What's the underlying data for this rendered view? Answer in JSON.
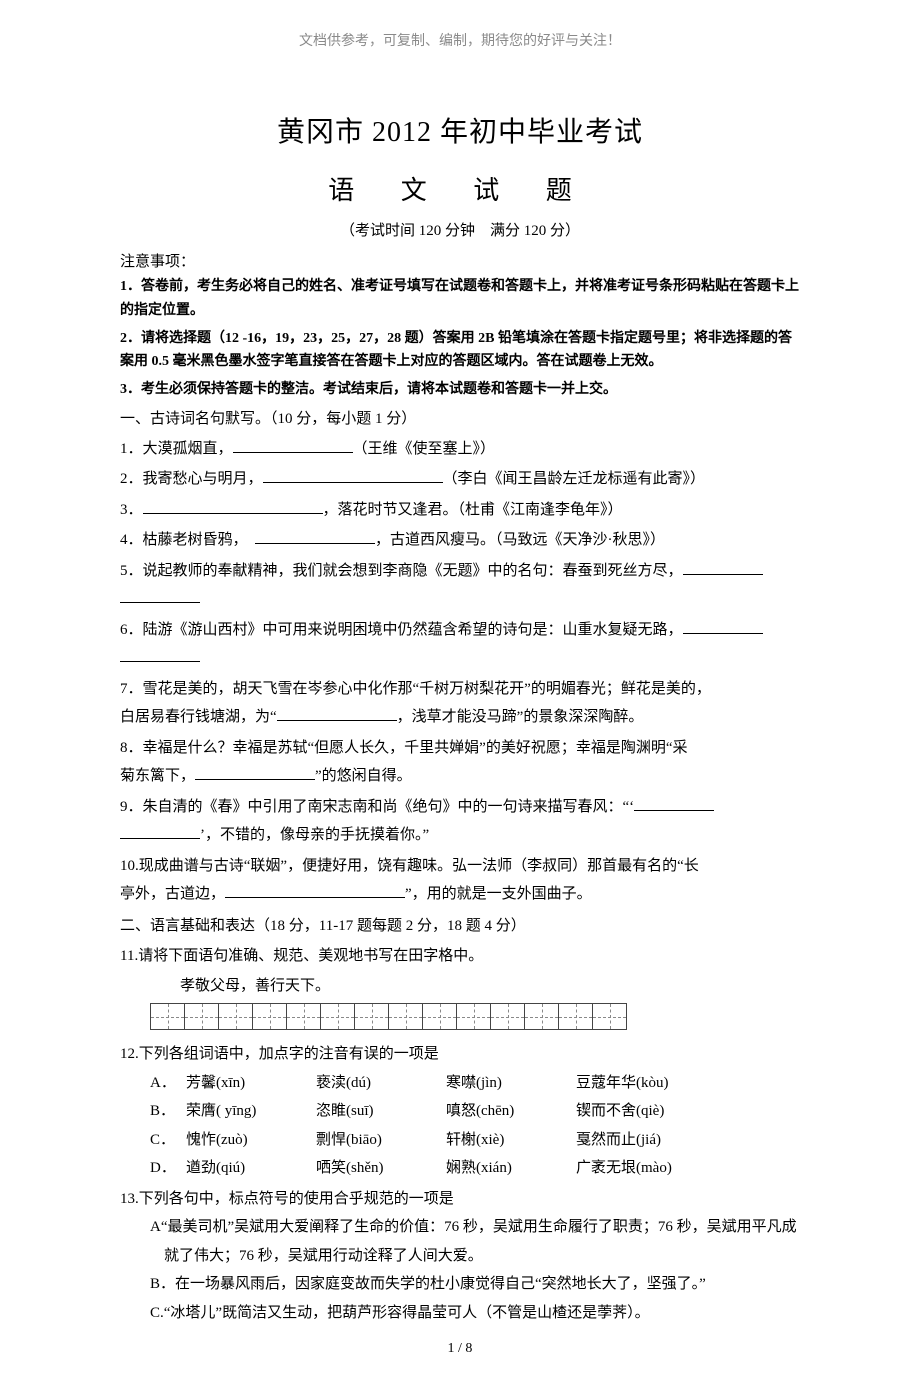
{
  "header_note": "文档供参考，可复制、编制，期待您的好评与关注！",
  "title": "黄冈市 2012 年初中毕业考试",
  "subtitle": "语 文 试 题",
  "exam_info": "（考试时间 120 分钟　满分 120 分）",
  "notice_heading": "注意事项：",
  "notices": [
    "1．答卷前，考生务必将自己的姓名、准考证号填写在试题卷和答题卡上，并将准考证号条形码粘贴在答题卡上的指定位置。",
    "2．请将选择题（12 -16，19，23，25，27，28 题）答案用 2B 铅笔填涂在答题卡指定题号里；将非选择题的答案用 0.5 毫米黑色墨水签字笔直接答在答题卡上对应的答题区域内。答在试题卷上无效。",
    "3．考生必须保持答题卡的整洁。考试结束后，请将本试题卷和答题卡一并上交。"
  ],
  "section1": "一、古诗词名句默写。（10 分，每小题 1 分）",
  "q1": {
    "prefix": "1．大漠孤烟直，",
    "suffix": "（王维《使至塞上》）"
  },
  "q2": {
    "prefix": "2．我寄愁心与明月，",
    "suffix": "（李白《闻王昌龄左迁龙标遥有此寄》）"
  },
  "q3": {
    "prefix": "3．",
    "suffix": "，落花时节又逢君。（杜甫《江南逢李龟年》）"
  },
  "q4": {
    "prefix": "4．枯藤老树昏鸦，　",
    "suffix": "，古道西风瘦马。（马致远《天净沙·秋思》）"
  },
  "q5": {
    "prefix": "5．说起教师的奉献精神，我们就会想到李商隐《无题》中的名句：春蚕到死丝方尽，"
  },
  "q6": {
    "prefix": "6．陆游《游山西村》中可用来说明困境中仍然蕴含希望的诗句是：山重水复疑无路，"
  },
  "q7": {
    "line1": "7．雪花是美的，胡天飞雪在岑参心中化作那“千树万树梨花开”的明媚春光；鲜花是美的，",
    "line2_prefix": "白居易春行钱塘湖，为“",
    "line2_suffix": "，浅草才能没马蹄”的景象深深陶醉。"
  },
  "q8": {
    "line1": "8．幸福是什么？幸福是苏轼“但愿人长久，千里共婵娟”的美好祝愿；幸福是陶渊明“采",
    "line2_prefix": "菊东篱下，",
    "line2_suffix": "”的悠闲自得。"
  },
  "q9": {
    "prefix": "9．朱自清的《春》中引用了南宋志南和尚《绝句》中的一句诗来描写春风：“‘",
    "suffix": "’，不错的，像母亲的手抚摸着你。”"
  },
  "q10": {
    "line1": "10.现成曲谱与古诗“联姻”，便捷好用，饶有趣味。弘一法师（李叔同）那首最有名的“长",
    "line2_prefix": "亭外，古道边，",
    "line2_suffix": "”，用的就是一支外国曲子。"
  },
  "section2": "二、语言基础和表达（18 分，11-17 题每题 2 分，18 题 4 分）",
  "q11": "11.请将下面语句准确、规范、美观地书写在田字格中。",
  "q11_text": "孝敬父母，善行天下。",
  "grid_cells": 14,
  "q12": {
    "stem": "12.下列各组词语中，加点字的注音有误的一项是",
    "options": [
      {
        "label": "A．",
        "c1": "芳馨(xīn)",
        "c2": "亵渎(dú)",
        "c3": "寒噤(jìn)",
        "c4": "豆蔻年华(kòu)"
      },
      {
        "label": "B．",
        "c1": "荣膺( yīng)",
        "c2": "恣睢(suī)",
        "c3": "嗔怒(chēn)",
        "c4": "锲而不舍(qiè)"
      },
      {
        "label": "C．",
        "c1": "愧怍(zuò)",
        "c2": "剽悍(biāo)",
        "c3": "轩榭(xiè)",
        "c4": "戛然而止(jiá)"
      },
      {
        "label": "D．",
        "c1": "遒劲(qiú)",
        "c2": "哂笑(shěn)",
        "c3": "娴熟(xián)",
        "c4": "广袤无垠(mào)"
      }
    ]
  },
  "q13": {
    "stem": "13.下列各句中，标点符号的使用合乎规范的一项是",
    "options": [
      "A“最美司机”吴斌用大爱阐释了生命的价值：76 秒，吴斌用生命履行了职责；76 秒，吴斌用平凡成就了伟大；76 秒，吴斌用行动诠释了人间大爱。",
      "B．在一场暴风雨后，因家庭变故而失学的杜小康觉得自己“突然地长大了，坚强了。”",
      "C.“冰塔儿”既简洁又生动，把葫芦形容得晶莹可人（不管是山楂还是荸荠）。"
    ]
  },
  "footer": "1 / 8"
}
